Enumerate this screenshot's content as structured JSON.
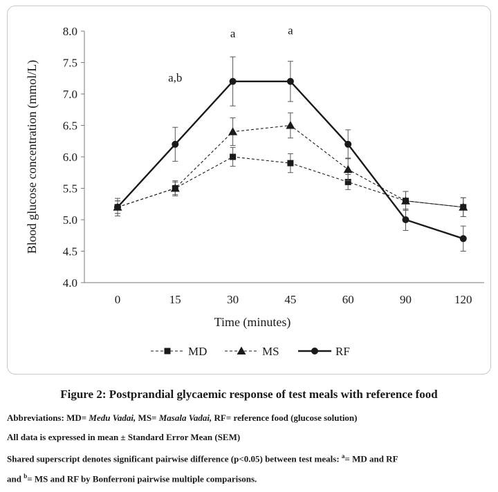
{
  "chart_data": {
    "type": "line",
    "categories": [
      "0",
      "15",
      "30",
      "45",
      "60",
      "90",
      "120"
    ],
    "xlabel": "Time (minutes)",
    "ylabel": "Blood glucose concentration (mmol/L)",
    "ylim": [
      4.0,
      8.0
    ],
    "yticks": [
      "4.0",
      "4.5",
      "5.0",
      "5.5",
      "6.0",
      "6.5",
      "7.0",
      "7.5",
      "8.0"
    ],
    "grid": false,
    "legend_position": "bottom",
    "series": [
      {
        "name": "MD",
        "marker": "square",
        "line": "dashed",
        "values": [
          5.2,
          5.5,
          6.0,
          5.9,
          5.6,
          5.3,
          5.2
        ],
        "errors": [
          0.1,
          0.1,
          0.15,
          0.15,
          0.12,
          0.15,
          0.15
        ]
      },
      {
        "name": "MS",
        "marker": "triangle",
        "line": "dashed",
        "values": [
          5.2,
          5.5,
          6.4,
          6.5,
          5.8,
          5.3,
          5.2
        ],
        "errors": [
          0.1,
          0.12,
          0.22,
          0.2,
          0.18,
          0.15,
          0.15
        ]
      },
      {
        "name": "RF",
        "marker": "circle",
        "line": "solid",
        "values": [
          5.2,
          6.2,
          7.2,
          7.2,
          6.2,
          5.0,
          4.7
        ],
        "errors": [
          0.14,
          0.27,
          0.39,
          0.32,
          0.23,
          0.17,
          0.2
        ]
      }
    ],
    "annotations": [
      {
        "text": "a,b",
        "x": "15",
        "y": 7.2
      },
      {
        "text": "a",
        "x": "30",
        "y": 7.9
      },
      {
        "text": "a",
        "x": "45",
        "y": 7.95
      }
    ]
  },
  "figure": {
    "title": "Figure 2: Postprandial glycaemic response of test meals with reference food"
  },
  "notes": {
    "abbrev_prefix": "Abbreviations: MD= ",
    "md_name": "Medu Vadai,",
    "ms_prefix": " MS= ",
    "ms_name": "Masala Vadai,",
    "rf_text": " RF= reference food (glucose solution)",
    "data_note": "All data is expressed in mean ± Standard Error Mean (SEM)",
    "shared_prefix": "Shared superscript denotes significant pairwise difference (p<0.05) between test meals: ",
    "sup_a": "a",
    "sup_a_text": "= MD and RF",
    "and_prefix": "and ",
    "sup_b": "b",
    "sup_b_text": "= MS and RF by Bonferroni pairwise multiple comparisons."
  },
  "colors": {
    "line": "#1a1a1a",
    "frame": "#c8c8c8"
  }
}
